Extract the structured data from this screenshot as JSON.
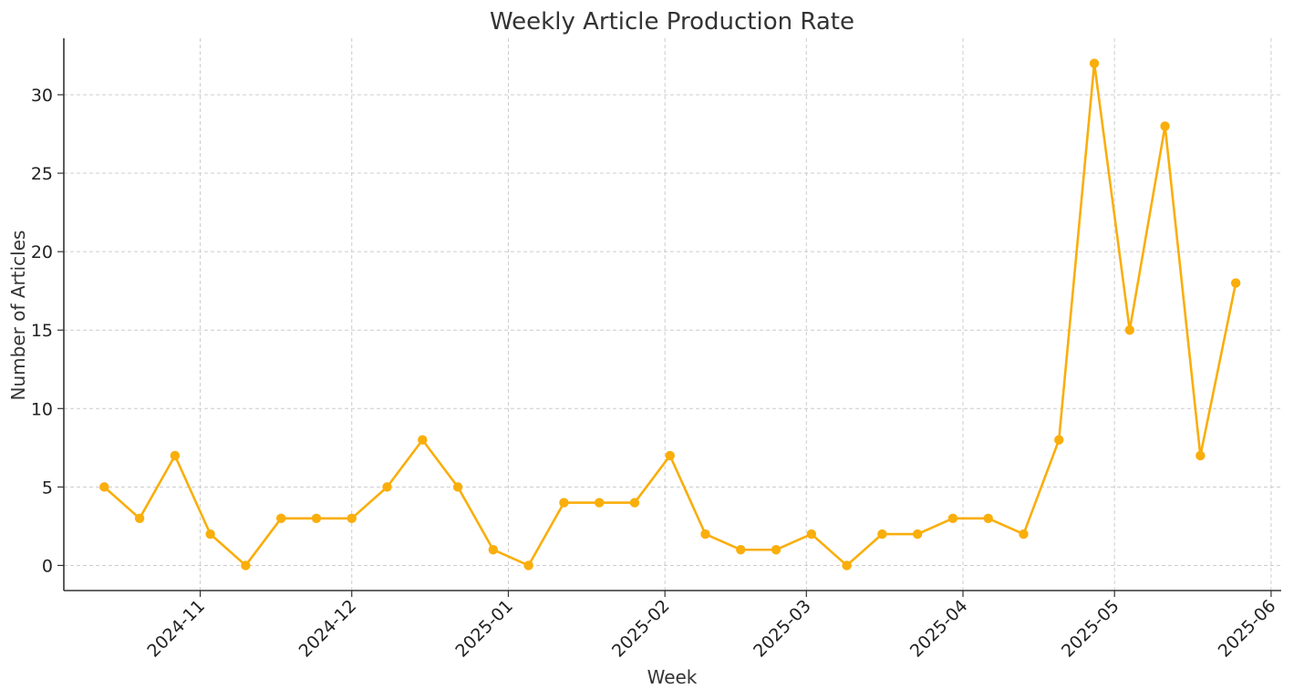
{
  "chart_data": {
    "type": "line",
    "title": "Weekly Article Production Rate",
    "xlabel": "Week",
    "ylabel": "Number of Articles",
    "ylim": [
      -1.6,
      33.6
    ],
    "xlim": [
      "2024-10-05",
      "2025-06-03"
    ],
    "yticks": [
      0,
      5,
      10,
      15,
      20,
      25,
      30
    ],
    "xticks": [
      {
        "date": "2024-11-01",
        "label": "2024-11"
      },
      {
        "date": "2024-12-01",
        "label": "2024-12"
      },
      {
        "date": "2025-01-01",
        "label": "2025-01"
      },
      {
        "date": "2025-02-01",
        "label": "2025-02"
      },
      {
        "date": "2025-03-01",
        "label": "2025-03"
      },
      {
        "date": "2025-04-01",
        "label": "2025-04"
      },
      {
        "date": "2025-05-01",
        "label": "2025-05"
      },
      {
        "date": "2025-06-01",
        "label": "2025-06"
      }
    ],
    "grid": true,
    "color": "#F9AE0B",
    "series": [
      {
        "x": [
          "2024-10-13",
          "2024-10-20",
          "2024-10-27",
          "2024-11-03",
          "2024-11-10",
          "2024-11-17",
          "2024-11-24",
          "2024-12-01",
          "2024-12-08",
          "2024-12-15",
          "2024-12-22",
          "2024-12-29",
          "2025-01-05",
          "2025-01-12",
          "2025-01-19",
          "2025-01-26",
          "2025-02-02",
          "2025-02-09",
          "2025-02-16",
          "2025-02-23",
          "2025-03-02",
          "2025-03-09",
          "2025-03-16",
          "2025-03-23",
          "2025-03-30",
          "2025-04-06",
          "2025-04-13",
          "2025-04-20",
          "2025-04-27",
          "2025-05-04",
          "2025-05-11",
          "2025-05-18",
          "2025-05-25"
        ],
        "y": [
          5,
          3,
          7,
          2,
          0,
          3,
          3,
          3,
          5,
          8,
          5,
          1,
          0,
          4,
          4,
          4,
          7,
          2,
          1,
          1,
          2,
          0,
          2,
          2,
          3,
          3,
          2,
          8,
          32,
          15,
          28,
          7,
          18
        ]
      }
    ]
  }
}
